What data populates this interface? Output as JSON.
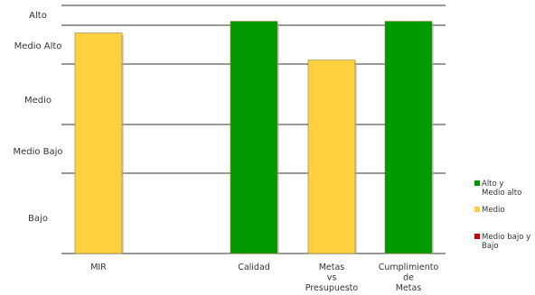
{
  "chart_data": {
    "type": "bar",
    "title": "",
    "xlabel": "",
    "ylabel": "",
    "y_levels": [
      "Bajo",
      "Medio Bajo",
      "Medio",
      "Medio  Alto",
      "Alto"
    ],
    "categories": [
      [
        "MIR"
      ],
      [
        ""
      ],
      [
        "Calidad"
      ],
      [
        "Metas",
        "vs",
        "Presupuesto"
      ],
      [
        "Cumplimiento",
        "de",
        "Metas"
      ]
    ],
    "series": [
      {
        "values": [
          3.8,
          0,
          4.2,
          3.1,
          4.2
        ],
        "status": [
          "Medio",
          "",
          "Alto y Medio alto",
          "Medio",
          "Alto y Medio alto"
        ]
      }
    ],
    "ylim": [
      0,
      5
    ],
    "grid": true,
    "legend_position": "right",
    "legend": [
      {
        "label": [
          "Alto y",
          "Medio alto"
        ],
        "color": "#009a00"
      },
      {
        "label": [
          "Medio"
        ],
        "color": "#ffd040"
      },
      {
        "label": [
          "Medio bajo y",
          "Bajo"
        ],
        "color": "#cc0000"
      }
    ],
    "colors": {
      "Alto y Medio alto": "#009a00",
      "Medio": "#ffd040",
      "Medio bajo y Bajo": "#cc0000"
    }
  }
}
